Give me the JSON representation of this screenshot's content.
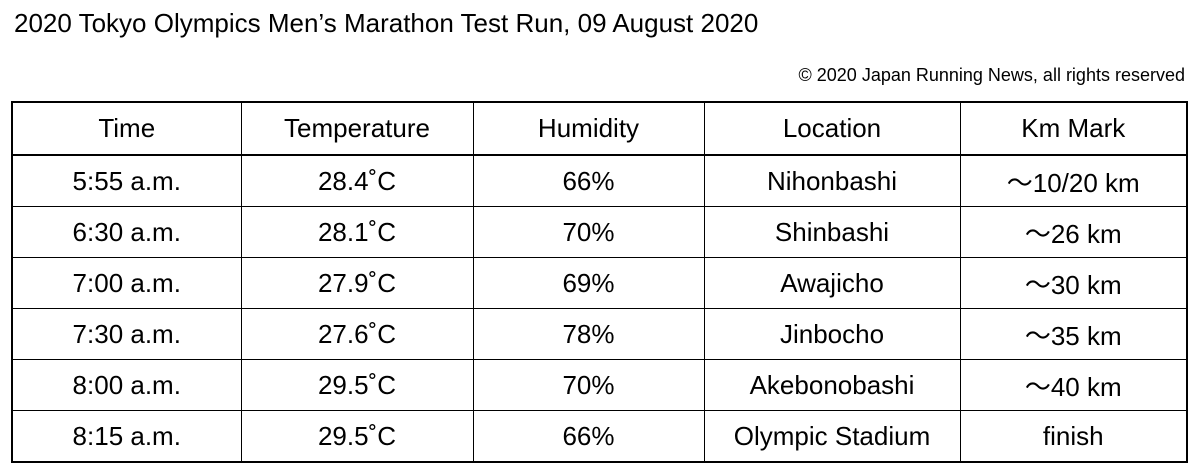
{
  "title": "2020 Tokyo Olympics Men’s Marathon Test Run, 09 August 2020",
  "copyright": "© 2020 Japan Running News, all rights reserved",
  "table": {
    "headers": [
      "Time",
      "Temperature",
      "Humidity",
      "Location",
      "Km Mark"
    ],
    "rows": [
      [
        "5:55 a.m.",
        "28.4˚C",
        "66%",
        "Nihonbashi",
        "～10/20 km"
      ],
      [
        "6:30 a.m.",
        "28.1˚C",
        "70%",
        "Shinbashi",
        "～26 km"
      ],
      [
        "7:00 a.m.",
        "27.9˚C",
        "69%",
        "Awajicho",
        "～30 km"
      ],
      [
        "7:30 a.m.",
        "27.6˚C",
        "78%",
        "Jinbocho",
        "～35 km"
      ],
      [
        "8:00 a.m.",
        "29.5˚C",
        "70%",
        "Akebonobashi",
        "～40 km"
      ],
      [
        "8:15 a.m.",
        "29.5˚C",
        "66%",
        "Olympic Stadium",
        "finish"
      ]
    ]
  }
}
